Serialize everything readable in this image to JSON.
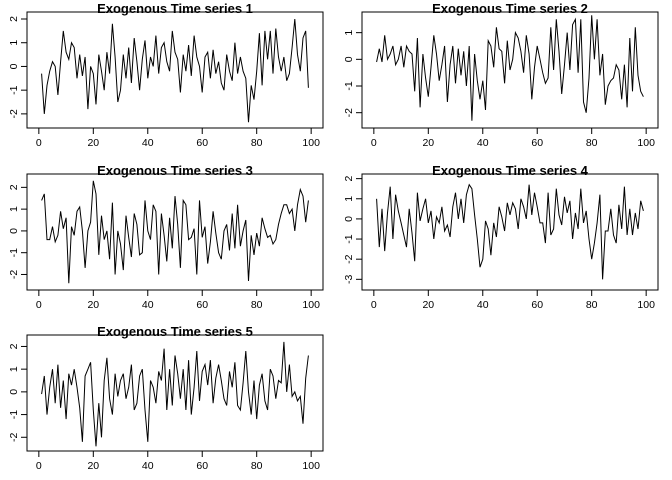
{
  "chart_data": [
    {
      "type": "line",
      "title": "Exogenous Time series 1",
      "xlabel": "",
      "ylabel": "",
      "xlim": [
        0,
        100
      ],
      "ylim": [
        -2.4,
        2.1
      ],
      "xticks": [
        0,
        20,
        40,
        60,
        80,
        100
      ],
      "yticks": [
        -2,
        -1,
        0,
        1,
        2
      ],
      "x": [
        1,
        2,
        3,
        4,
        5,
        6,
        7,
        8,
        9,
        10,
        11,
        12,
        13,
        14,
        15,
        16,
        17,
        18,
        19,
        20,
        21,
        22,
        23,
        24,
        25,
        26,
        27,
        28,
        29,
        30,
        31,
        32,
        33,
        34,
        35,
        36,
        37,
        38,
        39,
        40,
        41,
        42,
        43,
        44,
        45,
        46,
        47,
        48,
        49,
        50,
        51,
        52,
        53,
        54,
        55,
        56,
        57,
        58,
        59,
        60,
        61,
        62,
        63,
        64,
        65,
        66,
        67,
        68,
        69,
        70,
        71,
        72,
        73,
        74,
        75,
        76,
        77,
        78,
        79,
        80,
        81,
        82,
        83,
        84,
        85,
        86,
        87,
        88,
        89,
        90,
        91,
        92,
        93,
        94,
        95,
        96,
        97,
        98,
        99
      ],
      "values": [
        -0.3,
        -2.0,
        -0.8,
        -0.2,
        0.2,
        0.0,
        -1.2,
        0.2,
        1.5,
        0.6,
        0.3,
        1.0,
        0.8,
        -0.5,
        0.5,
        -0.4,
        0.4,
        -1.8,
        0.0,
        -0.3,
        -1.6,
        0.5,
        -0.2,
        -1.0,
        0.6,
        -0.3,
        1.8,
        0.4,
        -1.5,
        -1.0,
        0.5,
        -0.5,
        0.8,
        -0.7,
        1.2,
        0.2,
        -1.0,
        0.3,
        1.1,
        -0.5,
        0.4,
        0.0,
        1.3,
        -0.3,
        0.8,
        1.0,
        0.2,
        -0.2,
        1.5,
        0.6,
        0.3,
        -1.1,
        0.5,
        -0.2,
        0.9,
        -0.4,
        1.3,
        0.4,
        0.0,
        -1.1,
        0.4,
        0.6,
        -0.5,
        0.7,
        -0.3,
        0.2,
        -0.7,
        -1.0,
        0.5,
        -0.2,
        -0.6,
        1.0,
        -0.3,
        0.4,
        -0.2,
        -0.5,
        -2.35,
        -0.8,
        -1.4,
        -0.2,
        1.4,
        -0.8,
        1.5,
        0.3,
        1.5,
        -0.3,
        1.6,
        0.4,
        -0.2,
        0.4,
        -0.6,
        -0.3,
        0.8,
        2.0,
        0.5,
        -0.2,
        1.2,
        1.5,
        -0.9
      ],
      "position": "top-left"
    },
    {
      "type": "line",
      "title": "Exogenous Time series 2",
      "xlabel": "",
      "ylabel": "",
      "xlim": [
        0,
        100
      ],
      "ylim": [
        -2.4,
        1.6
      ],
      "xticks": [
        0,
        20,
        40,
        60,
        80,
        100
      ],
      "yticks": [
        -2,
        -1,
        0,
        1
      ],
      "x": [
        1,
        2,
        3,
        4,
        5,
        6,
        7,
        8,
        9,
        10,
        11,
        12,
        13,
        14,
        15,
        16,
        17,
        18,
        19,
        20,
        21,
        22,
        23,
        24,
        25,
        26,
        27,
        28,
        29,
        30,
        31,
        32,
        33,
        34,
        35,
        36,
        37,
        38,
        39,
        40,
        41,
        42,
        43,
        44,
        45,
        46,
        47,
        48,
        49,
        50,
        51,
        52,
        53,
        54,
        55,
        56,
        57,
        58,
        59,
        60,
        61,
        62,
        63,
        64,
        65,
        66,
        67,
        68,
        69,
        70,
        71,
        72,
        73,
        74,
        75,
        76,
        77,
        78,
        79,
        80,
        81,
        82,
        83,
        84,
        85,
        86,
        87,
        88,
        89,
        90,
        91,
        92,
        93,
        94,
        95,
        96,
        97,
        98,
        99
      ],
      "values": [
        -0.1,
        0.4,
        -0.1,
        0.9,
        0.0,
        0.2,
        0.5,
        -0.2,
        0.0,
        0.5,
        -0.3,
        0.5,
        0.3,
        0.2,
        -1.2,
        0.8,
        -1.8,
        0.2,
        -0.7,
        -1.4,
        -0.3,
        0.9,
        0.2,
        -0.8,
        -0.2,
        0.5,
        -1.6,
        -0.2,
        0.5,
        -0.9,
        0.4,
        -0.6,
        0.3,
        -1.0,
        0.5,
        -2.3,
        0.2,
        -0.8,
        -1.5,
        -0.8,
        -1.9,
        0.7,
        0.5,
        -0.3,
        1.2,
        0.4,
        0.3,
        -0.9,
        0.7,
        -0.4,
        0.0,
        1.0,
        0.8,
        0.3,
        -0.5,
        0.9,
        0.2,
        -1.5,
        -0.3,
        0.5,
        0.0,
        -0.5,
        -0.9,
        -0.7,
        1.2,
        -0.4,
        1.5,
        0.3,
        -1.3,
        -0.2,
        1.0,
        -0.4,
        1.3,
        1.5,
        -0.5,
        1.5,
        -1.6,
        -2.0,
        -0.7,
        1.65,
        0.0,
        1.5,
        -0.6,
        0.2,
        -1.7,
        -1.0,
        -0.8,
        -0.7,
        -0.2,
        -0.4,
        -1.5,
        -0.2,
        -1.8,
        0.8,
        -1.2,
        1.2,
        -0.6,
        -1.2,
        -1.4
      ],
      "position": "top-right"
    },
    {
      "type": "line",
      "title": "Exogenous Time series 3",
      "xlabel": "",
      "ylabel": "",
      "xlim": [
        0,
        100
      ],
      "ylim": [
        -2.5,
        2.4
      ],
      "xticks": [
        0,
        20,
        40,
        60,
        80,
        100
      ],
      "yticks": [
        -2,
        -1,
        0,
        1,
        2
      ],
      "x": [
        1,
        2,
        3,
        4,
        5,
        6,
        7,
        8,
        9,
        10,
        11,
        12,
        13,
        14,
        15,
        16,
        17,
        18,
        19,
        20,
        21,
        22,
        23,
        24,
        25,
        26,
        27,
        28,
        29,
        30,
        31,
        32,
        33,
        34,
        35,
        36,
        37,
        38,
        39,
        40,
        41,
        42,
        43,
        44,
        45,
        46,
        47,
        48,
        49,
        50,
        51,
        52,
        53,
        54,
        55,
        56,
        57,
        58,
        59,
        60,
        61,
        62,
        63,
        64,
        65,
        66,
        67,
        68,
        69,
        70,
        71,
        72,
        73,
        74,
        75,
        76,
        77,
        78,
        79,
        80,
        81,
        82,
        83,
        84,
        85,
        86,
        87,
        88,
        89,
        90,
        91,
        92,
        93,
        94,
        95,
        96,
        97,
        98,
        99
      ],
      "values": [
        1.4,
        1.7,
        -0.4,
        -0.4,
        0.2,
        -0.5,
        -0.2,
        0.9,
        0.1,
        0.6,
        -2.4,
        0.2,
        -0.2,
        0.9,
        1.1,
        0.0,
        -1.7,
        0.0,
        0.4,
        2.3,
        1.7,
        -1.1,
        0.7,
        -0.4,
        0.0,
        -1.3,
        1.3,
        -2.0,
        0.0,
        -0.6,
        -1.8,
        0.7,
        -0.3,
        -1.2,
        0.8,
        0.3,
        -1.1,
        -1.0,
        1.4,
        0.0,
        -0.4,
        1.2,
        0.9,
        -2.0,
        0.8,
        -0.2,
        -1.4,
        0.6,
        -0.8,
        1.6,
        0.3,
        -1.7,
        1.4,
        1.2,
        -0.4,
        -0.3,
        0.1,
        -2.0,
        1.4,
        -0.3,
        0.2,
        -1.5,
        -0.5,
        0.9,
        -0.1,
        -1.0,
        -1.3,
        0.0,
        0.3,
        -0.9,
        0.8,
        -0.8,
        1.2,
        -0.7,
        0.0,
        0.5,
        -2.3,
        -0.2,
        -1.1,
        -0.1,
        -0.7,
        0.6,
        0.1,
        -0.3,
        -0.2,
        -0.6,
        -0.4,
        0.3,
        0.8,
        1.2,
        1.2,
        0.8,
        1.0,
        0.0,
        1.2,
        1.9,
        1.6,
        0.4,
        1.4
      ],
      "position": "middle-left"
    },
    {
      "type": "line",
      "title": "Exogenous Time series 4",
      "xlabel": "",
      "ylabel": "",
      "xlim": [
        0,
        100
      ],
      "ylim": [
        -3.3,
        2.0
      ],
      "xticks": [
        0,
        20,
        40,
        60,
        80,
        100
      ],
      "yticks": [
        -3,
        -2,
        -1,
        0,
        1,
        2
      ],
      "x": [
        1,
        2,
        3,
        4,
        5,
        6,
        7,
        8,
        9,
        10,
        11,
        12,
        13,
        14,
        15,
        16,
        17,
        18,
        19,
        20,
        21,
        22,
        23,
        24,
        25,
        26,
        27,
        28,
        29,
        30,
        31,
        32,
        33,
        34,
        35,
        36,
        37,
        38,
        39,
        40,
        41,
        42,
        43,
        44,
        45,
        46,
        47,
        48,
        49,
        50,
        51,
        52,
        53,
        54,
        55,
        56,
        57,
        58,
        59,
        60,
        61,
        62,
        63,
        64,
        65,
        66,
        67,
        68,
        69,
        70,
        71,
        72,
        73,
        74,
        75,
        76,
        77,
        78,
        79,
        80,
        81,
        82,
        83,
        84,
        85,
        86,
        87,
        88,
        89,
        90,
        91,
        92,
        93,
        94,
        95,
        96,
        97,
        98,
        99
      ],
      "values": [
        1.0,
        -1.4,
        0.5,
        -1.6,
        0.3,
        1.6,
        -1.0,
        1.2,
        0.4,
        -0.2,
        -0.8,
        -1.4,
        0.5,
        -0.7,
        -2.1,
        1.3,
        -0.1,
        0.5,
        1.0,
        -0.2,
        0.4,
        -1.0,
        0.1,
        -0.2,
        0.6,
        -0.6,
        -0.3,
        -0.9,
        0.6,
        1.3,
        0.0,
        1.0,
        -0.2,
        1.2,
        1.7,
        1.5,
        0.2,
        -1.0,
        -2.4,
        -2.0,
        -0.1,
        -0.5,
        -1.8,
        -0.2,
        -0.9,
        0.6,
        0.1,
        -0.6,
        0.8,
        0.2,
        0.8,
        0.5,
        -0.5,
        1.0,
        0.6,
        0.0,
        1.7,
        0.2,
        1.3,
        0.6,
        -0.2,
        -0.2,
        -1.2,
        1.3,
        -0.8,
        -0.5,
        1.5,
        0.2,
        -0.3,
        1.1,
        0.3,
        0.9,
        -1.0,
        0.3,
        -0.5,
        1.5,
        -0.2,
        0.4,
        -1.0,
        -2.0,
        -1.2,
        -0.2,
        1.2,
        -3.0,
        -0.6,
        -0.6,
        0.5,
        -0.8,
        -1.2,
        0.7,
        -0.5,
        1.6,
        -0.8,
        0.5,
        -0.8,
        0.3,
        -0.5,
        0.9,
        0.4
      ],
      "position": "middle-right"
    },
    {
      "type": "line",
      "title": "Exogenous Time series 5",
      "xlabel": "",
      "ylabel": "",
      "xlim": [
        0,
        100
      ],
      "ylim": [
        -2.4,
        2.3
      ],
      "xticks": [
        0,
        20,
        40,
        60,
        80,
        100
      ],
      "yticks": [
        -2,
        -1,
        0,
        1,
        2
      ],
      "x": [
        1,
        2,
        3,
        4,
        5,
        6,
        7,
        8,
        9,
        10,
        11,
        12,
        13,
        14,
        15,
        16,
        17,
        18,
        19,
        20,
        21,
        22,
        23,
        24,
        25,
        26,
        27,
        28,
        29,
        30,
        31,
        32,
        33,
        34,
        35,
        36,
        37,
        38,
        39,
        40,
        41,
        42,
        43,
        44,
        45,
        46,
        47,
        48,
        49,
        50,
        51,
        52,
        53,
        54,
        55,
        56,
        57,
        58,
        59,
        60,
        61,
        62,
        63,
        64,
        65,
        66,
        67,
        68,
        69,
        70,
        71,
        72,
        73,
        74,
        75,
        76,
        77,
        78,
        79,
        80,
        81,
        82,
        83,
        84,
        85,
        86,
        87,
        88,
        89,
        90,
        91,
        92,
        93,
        94,
        95,
        96,
        97,
        98,
        99
      ],
      "values": [
        -0.1,
        0.7,
        -1.0,
        0.2,
        1.0,
        -0.5,
        1.2,
        -0.7,
        0.5,
        -1.2,
        0.8,
        0.3,
        1.0,
        0.2,
        -0.7,
        -2.2,
        0.7,
        1.0,
        1.3,
        -0.8,
        -2.4,
        -0.5,
        -2.0,
        0.5,
        1.5,
        -0.3,
        -1.0,
        0.8,
        -0.2,
        0.5,
        0.8,
        -0.3,
        0.2,
        1.2,
        -0.8,
        -0.5,
        0.7,
        1.0,
        -0.8,
        -2.2,
        0.5,
        0.2,
        -0.5,
        0.9,
        0.5,
        1.9,
        -0.8,
        1.0,
        -0.6,
        1.6,
        0.8,
        -0.3,
        1.0,
        -0.8,
        1.4,
        -1.0,
        0.2,
        1.8,
        -0.4,
        0.9,
        1.2,
        0.3,
        1.4,
        -0.5,
        0.6,
        1.2,
        0.5,
        -0.3,
        -0.6,
        0.9,
        0.2,
        1.3,
        -0.6,
        -0.8,
        0.4,
        1.8,
        0.0,
        -1.0,
        0.5,
        -1.2,
        0.3,
        0.8,
        -0.4,
        -0.8,
        1.0,
        0.7,
        -0.3,
        0.5,
        0.4,
        2.2,
        0.0,
        1.2,
        -0.2,
        0.0,
        -0.4,
        -0.2,
        -1.4,
        0.6,
        1.6
      ],
      "position": "bottom-left"
    }
  ]
}
